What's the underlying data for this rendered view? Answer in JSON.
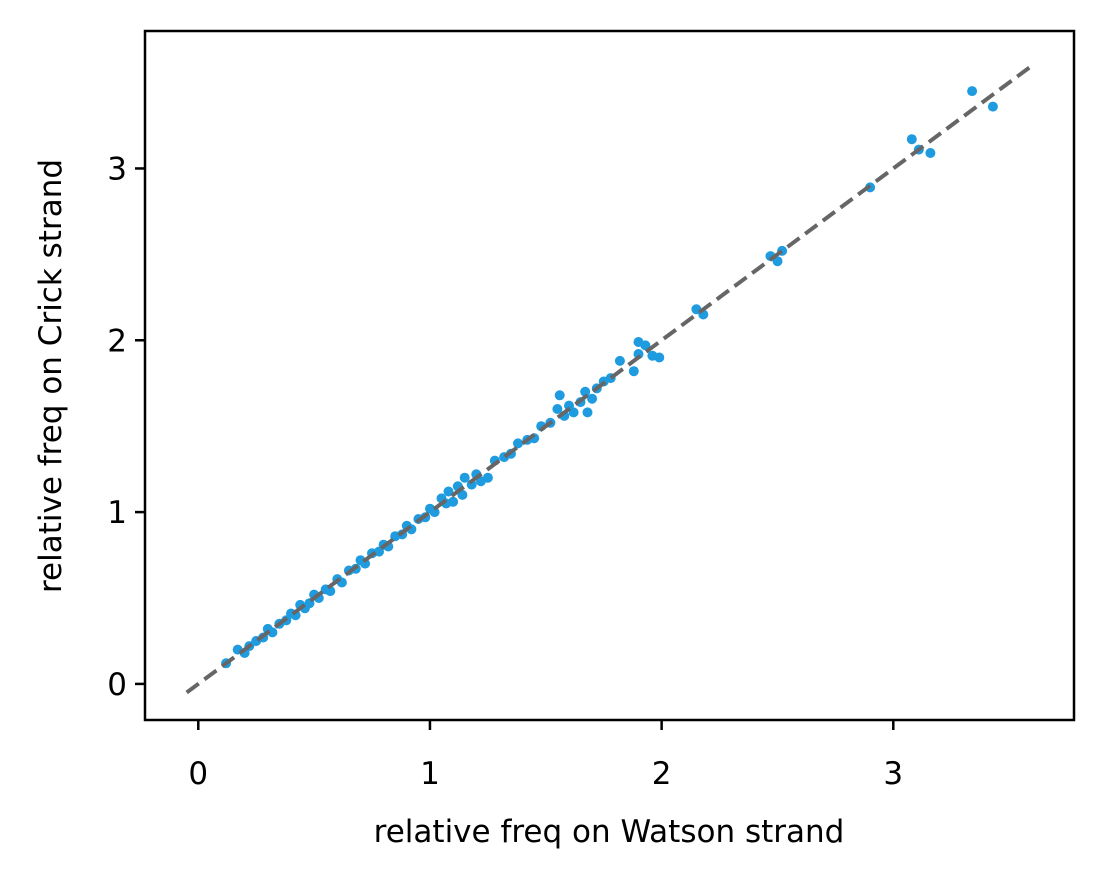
{
  "chart_data": {
    "type": "scatter",
    "title": "",
    "xlabel": "relative freq on Watson strand",
    "ylabel": "relative freq on Crick strand",
    "xlim": [
      -0.23,
      3.78
    ],
    "ylim": [
      -0.21,
      3.8
    ],
    "xticks": [
      0,
      1,
      2,
      3
    ],
    "yticks": [
      0,
      1,
      2,
      3
    ],
    "xtick_labels": [
      "0",
      "1",
      "2",
      "3"
    ],
    "ytick_labels": [
      "0",
      "1",
      "2",
      "3"
    ],
    "grid": false,
    "legend": "none",
    "point_color": "#1f9be0",
    "reference_line": {
      "style": "dashed",
      "color": "#666666",
      "x": [
        -0.05,
        3.6
      ],
      "y": [
        -0.05,
        3.6
      ]
    },
    "points": [
      [
        0.12,
        0.12
      ],
      [
        0.17,
        0.2
      ],
      [
        0.2,
        0.18
      ],
      [
        0.22,
        0.22
      ],
      [
        0.25,
        0.25
      ],
      [
        0.28,
        0.27
      ],
      [
        0.3,
        0.32
      ],
      [
        0.32,
        0.3
      ],
      [
        0.35,
        0.35
      ],
      [
        0.38,
        0.37
      ],
      [
        0.4,
        0.41
      ],
      [
        0.42,
        0.4
      ],
      [
        0.44,
        0.46
      ],
      [
        0.46,
        0.44
      ],
      [
        0.48,
        0.47
      ],
      [
        0.5,
        0.52
      ],
      [
        0.52,
        0.5
      ],
      [
        0.55,
        0.55
      ],
      [
        0.57,
        0.54
      ],
      [
        0.6,
        0.61
      ],
      [
        0.62,
        0.59
      ],
      [
        0.65,
        0.66
      ],
      [
        0.68,
        0.67
      ],
      [
        0.7,
        0.72
      ],
      [
        0.72,
        0.7
      ],
      [
        0.75,
        0.76
      ],
      [
        0.78,
        0.77
      ],
      [
        0.8,
        0.81
      ],
      [
        0.82,
        0.8
      ],
      [
        0.85,
        0.86
      ],
      [
        0.88,
        0.87
      ],
      [
        0.9,
        0.92
      ],
      [
        0.92,
        0.9
      ],
      [
        0.95,
        0.96
      ],
      [
        0.98,
        0.97
      ],
      [
        1.0,
        1.02
      ],
      [
        1.02,
        1.0
      ],
      [
        1.05,
        1.08
      ],
      [
        1.07,
        1.05
      ],
      [
        1.08,
        1.12
      ],
      [
        1.1,
        1.06
      ],
      [
        1.12,
        1.15
      ],
      [
        1.14,
        1.1
      ],
      [
        1.15,
        1.2
      ],
      [
        1.18,
        1.16
      ],
      [
        1.2,
        1.22
      ],
      [
        1.22,
        1.18
      ],
      [
        1.25,
        1.2
      ],
      [
        1.28,
        1.3
      ],
      [
        1.32,
        1.32
      ],
      [
        1.35,
        1.34
      ],
      [
        1.38,
        1.4
      ],
      [
        1.42,
        1.42
      ],
      [
        1.45,
        1.43
      ],
      [
        1.48,
        1.5
      ],
      [
        1.52,
        1.52
      ],
      [
        1.55,
        1.6
      ],
      [
        1.56,
        1.68
      ],
      [
        1.58,
        1.56
      ],
      [
        1.6,
        1.62
      ],
      [
        1.62,
        1.58
      ],
      [
        1.65,
        1.64
      ],
      [
        1.67,
        1.7
      ],
      [
        1.68,
        1.58
      ],
      [
        1.7,
        1.66
      ],
      [
        1.72,
        1.72
      ],
      [
        1.75,
        1.76
      ],
      [
        1.78,
        1.78
      ],
      [
        1.82,
        1.88
      ],
      [
        1.88,
        1.82
      ],
      [
        1.9,
        1.92
      ],
      [
        1.9,
        1.99
      ],
      [
        1.93,
        1.97
      ],
      [
        1.96,
        1.91
      ],
      [
        1.99,
        1.9
      ],
      [
        2.15,
        2.18
      ],
      [
        2.18,
        2.15
      ],
      [
        2.47,
        2.49
      ],
      [
        2.5,
        2.46
      ],
      [
        2.52,
        2.52
      ],
      [
        2.9,
        2.89
      ],
      [
        3.08,
        3.17
      ],
      [
        3.11,
        3.11
      ],
      [
        3.16,
        3.09
      ],
      [
        3.34,
        3.45
      ],
      [
        3.43,
        3.36
      ]
    ]
  }
}
